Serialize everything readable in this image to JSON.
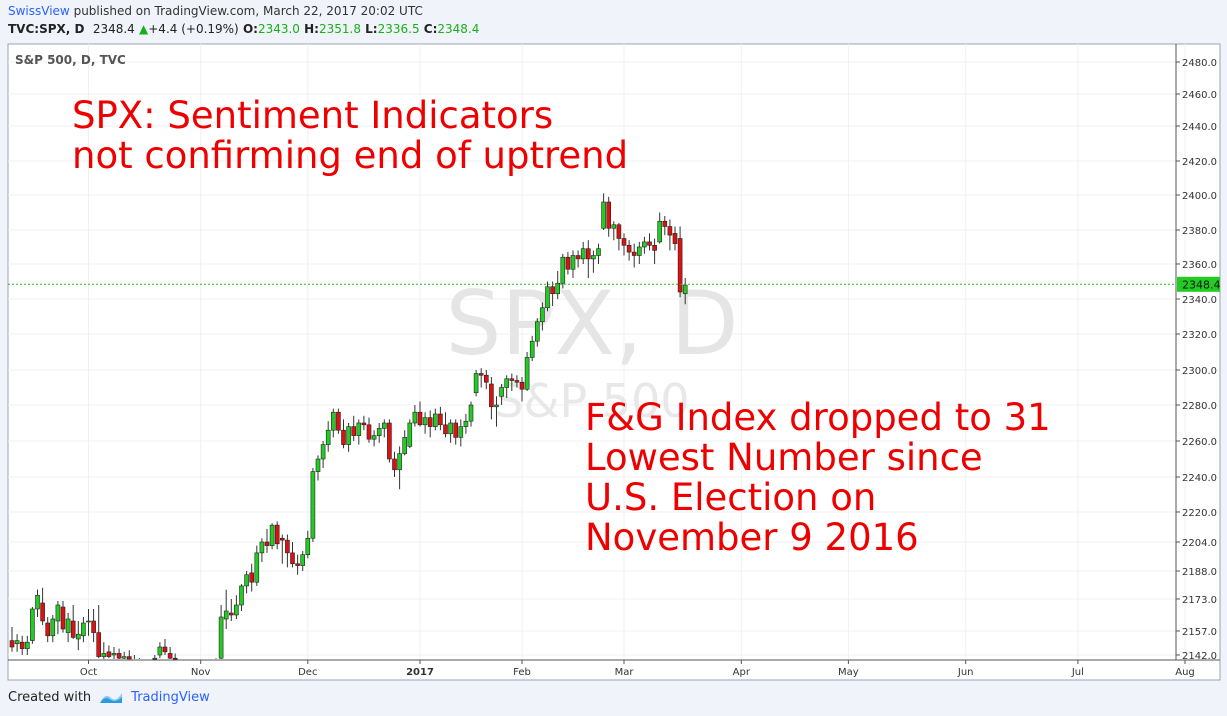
{
  "header": {
    "author": "SwissView",
    "published_text": "published on TradingView.com, March 22, 2017 20:02 UTC",
    "symbol": "TVC:SPX, D",
    "last": "2348.4",
    "change_arrow": "▲",
    "change": "+4.4 (+0.19%)",
    "o_label": "O:",
    "o": "2343.0",
    "h_label": "H:",
    "h": "2351.8",
    "l_label": "L:",
    "l": "2336.5",
    "c_label": "C:",
    "c": "2348.4"
  },
  "chart_data": {
    "type": "candlestick",
    "title": "S&P 500, D, TVC",
    "watermark_main": "SPX, D",
    "watermark_sub": "S&P 500",
    "annotation_1": [
      "SPX: Sentiment Indicators",
      "not confirming end of uptrend"
    ],
    "annotation_2": [
      "F&G Index dropped to 31",
      "Lowest Number since",
      "U.S. Election on",
      "November 9 2016"
    ],
    "last_price_label": "2348.4",
    "last_price": 2348.4,
    "y_ticks": [
      2142.0,
      2157.0,
      2173.0,
      2188.0,
      2204.0,
      2220.0,
      2240.0,
      2260.0,
      2280.0,
      2300.0,
      2320.0,
      2340.0,
      2360.0,
      2380.0,
      2400.0,
      2420.0,
      2440.0,
      2460.0,
      2480.0
    ],
    "y_tick_labels": [
      "2142.0",
      "2157.0",
      "2173.0",
      "2188.0",
      "2204.0",
      "2220.0",
      "2240.0",
      "2260.0",
      "2280.0",
      "2300.0",
      "2320.0",
      "2340.0",
      "2360.0",
      "2380.0",
      "2400.0",
      "2420.0",
      "2440.0",
      "2460.0",
      "2480.0"
    ],
    "x_ticks": [
      "Oct",
      "Nov",
      "Dec",
      "2017",
      "Feb",
      "Mar",
      "Apr",
      "May",
      "Jun",
      "Jul",
      "Aug"
    ],
    "x_tick_index": [
      15,
      37,
      58,
      80,
      100,
      120,
      143,
      164,
      187,
      209,
      230
    ],
    "up_color": "#22cc22",
    "down_color": "#dd1111",
    "grid": true,
    "y_scale": "log",
    "candles": [
      [
        2151,
        2159,
        2144,
        2147
      ],
      [
        2149,
        2155,
        2144,
        2151
      ],
      [
        2150,
        2154,
        2142,
        2146
      ],
      [
        2146,
        2154,
        2142,
        2150
      ],
      [
        2151,
        2169,
        2149,
        2168
      ],
      [
        2168,
        2178,
        2164,
        2175
      ],
      [
        2171,
        2179,
        2160,
        2162
      ],
      [
        2161,
        2164,
        2150,
        2154
      ],
      [
        2154,
        2165,
        2150,
        2163
      ],
      [
        2162,
        2172,
        2155,
        2170
      ],
      [
        2169,
        2172,
        2156,
        2158
      ],
      [
        2156,
        2166,
        2150,
        2163
      ],
      [
        2162,
        2170,
        2152,
        2153
      ],
      [
        2152,
        2162,
        2145,
        2155
      ],
      [
        2154,
        2164,
        2150,
        2161
      ],
      [
        2162,
        2168,
        2154,
        2162
      ],
      [
        2162,
        2168,
        2150,
        2156
      ],
      [
        2156,
        2170,
        2140,
        2141
      ],
      [
        2141,
        2150,
        2139,
        2143
      ],
      [
        2144,
        2148,
        2140,
        2141
      ],
      [
        2142,
        2147,
        2139,
        2143
      ],
      [
        2143,
        2146,
        2139,
        2140
      ],
      [
        2140,
        2144,
        2138,
        2141
      ],
      [
        2141,
        2145,
        2138,
        2139
      ],
      [
        2139,
        2142,
        2136,
        2137
      ],
      [
        2137,
        2140,
        2133,
        2135
      ],
      [
        2135,
        2139,
        2131,
        2134
      ],
      [
        2134,
        2138,
        2130,
        2132
      ],
      [
        2138,
        2142,
        2135,
        2140
      ],
      [
        2142,
        2150,
        2140,
        2147
      ],
      [
        2147,
        2152,
        2142,
        2144
      ],
      [
        2143,
        2147,
        2138,
        2140
      ],
      [
        2140,
        2143,
        2134,
        2136
      ],
      [
        2136,
        2139,
        2130,
        2133
      ],
      [
        2133,
        2137,
        2128,
        2131
      ],
      [
        2131,
        2134,
        2125,
        2128
      ],
      [
        2128,
        2132,
        2122,
        2126
      ],
      [
        2126,
        2130,
        2120,
        2124
      ],
      [
        2124,
        2128,
        2120,
        2123
      ],
      [
        2126,
        2134,
        2124,
        2132
      ],
      [
        2133,
        2140,
        2131,
        2139
      ],
      [
        2140,
        2170,
        2138,
        2164
      ],
      [
        2163,
        2178,
        2158,
        2167
      ],
      [
        2166,
        2173,
        2162,
        2165
      ],
      [
        2165,
        2175,
        2163,
        2170
      ],
      [
        2170,
        2181,
        2167,
        2180
      ],
      [
        2180,
        2188,
        2176,
        2186
      ],
      [
        2187,
        2192,
        2177,
        2182
      ],
      [
        2182,
        2202,
        2180,
        2198
      ],
      [
        2198,
        2206,
        2193,
        2204
      ],
      [
        2204,
        2211,
        2198,
        2202
      ],
      [
        2202,
        2214,
        2200,
        2213
      ],
      [
        2213,
        2215,
        2200,
        2203
      ],
      [
        2206,
        2208,
        2192,
        2205
      ],
      [
        2205,
        2208,
        2190,
        2198
      ],
      [
        2198,
        2204,
        2190,
        2192
      ],
      [
        2192,
        2197,
        2186,
        2191
      ],
      [
        2191,
        2199,
        2188,
        2197
      ],
      [
        2197,
        2210,
        2195,
        2206
      ],
      [
        2206,
        2245,
        2204,
        2243
      ],
      [
        2243,
        2252,
        2238,
        2250
      ],
      [
        2250,
        2260,
        2245,
        2258
      ],
      [
        2258,
        2271,
        2254,
        2266
      ],
      [
        2266,
        2278,
        2262,
        2276
      ],
      [
        2276,
        2278,
        2264,
        2266
      ],
      [
        2266,
        2272,
        2256,
        2258
      ],
      [
        2258,
        2270,
        2254,
        2268
      ],
      [
        2268,
        2274,
        2260,
        2263
      ],
      [
        2263,
        2272,
        2258,
        2270
      ],
      [
        2270,
        2274,
        2266,
        2269
      ],
      [
        2269,
        2273,
        2259,
        2261
      ],
      [
        2261,
        2266,
        2257,
        2263
      ],
      [
        2263,
        2270,
        2259,
        2267
      ],
      [
        2267,
        2272,
        2262,
        2270
      ],
      [
        2270,
        2272,
        2248,
        2250
      ],
      [
        2250,
        2254,
        2240,
        2244
      ],
      [
        2244,
        2257,
        2233,
        2253
      ],
      [
        2253,
        2266,
        2252,
        2262
      ],
      [
        2257,
        2272,
        2256,
        2270
      ],
      [
        2270,
        2280,
        2268,
        2276
      ],
      [
        2276,
        2282,
        2268,
        2269
      ],
      [
        2269,
        2276,
        2264,
        2273
      ],
      [
        2273,
        2277,
        2262,
        2268
      ],
      [
        2268,
        2278,
        2266,
        2275
      ],
      [
        2275,
        2279,
        2266,
        2269
      ],
      [
        2269,
        2276,
        2262,
        2264
      ],
      [
        2264,
        2272,
        2259,
        2270
      ],
      [
        2270,
        2272,
        2258,
        2262
      ],
      [
        2262,
        2272,
        2257,
        2268
      ],
      [
        2268,
        2275,
        2264,
        2271
      ],
      [
        2271,
        2282,
        2268,
        2280
      ],
      [
        2287,
        2300,
        2285,
        2298
      ],
      [
        2298,
        2301,
        2290,
        2297
      ],
      [
        2297,
        2300,
        2289,
        2293
      ],
      [
        2292,
        2296,
        2272,
        2279
      ],
      [
        2279,
        2285,
        2268,
        2280
      ],
      [
        2285,
        2292,
        2280,
        2290
      ],
      [
        2290,
        2297,
        2284,
        2295
      ],
      [
        2295,
        2298,
        2288,
        2294
      ],
      [
        2294,
        2297,
        2290,
        2293
      ],
      [
        2293,
        2296,
        2282,
        2289
      ],
      [
        2289,
        2310,
        2288,
        2307
      ],
      [
        2307,
        2319,
        2305,
        2316
      ],
      [
        2316,
        2329,
        2313,
        2327
      ],
      [
        2327,
        2338,
        2322,
        2335
      ],
      [
        2335,
        2350,
        2333,
        2347
      ],
      [
        2347,
        2350,
        2336,
        2343
      ],
      [
        2343,
        2356,
        2340,
        2349
      ],
      [
        2349,
        2366,
        2346,
        2364
      ],
      [
        2364,
        2367,
        2354,
        2357
      ],
      [
        2357,
        2368,
        2352,
        2365
      ],
      [
        2365,
        2368,
        2358,
        2363
      ],
      [
        2363,
        2373,
        2360,
        2369
      ],
      [
        2369,
        2374,
        2352,
        2363
      ],
      [
        2363,
        2368,
        2355,
        2365
      ],
      [
        2365,
        2372,
        2360,
        2369
      ],
      [
        2381,
        2401,
        2380,
        2396
      ],
      [
        2396,
        2399,
        2376,
        2381
      ],
      [
        2381,
        2385,
        2374,
        2383
      ],
      [
        2383,
        2384,
        2368,
        2375
      ],
      [
        2375,
        2378,
        2365,
        2371
      ],
      [
        2371,
        2374,
        2362,
        2367
      ],
      [
        2367,
        2372,
        2358,
        2365
      ],
      [
        2365,
        2373,
        2360,
        2370
      ],
      [
        2370,
        2376,
        2366,
        2373
      ],
      [
        2373,
        2378,
        2368,
        2371
      ],
      [
        2371,
        2375,
        2360,
        2368
      ],
      [
        2373,
        2390,
        2372,
        2385
      ],
      [
        2385,
        2388,
        2377,
        2382
      ],
      [
        2382,
        2386,
        2368,
        2377
      ],
      [
        2378,
        2382,
        2368,
        2372
      ],
      [
        2375,
        2382,
        2341,
        2344
      ],
      [
        2343,
        2352,
        2337,
        2348
      ]
    ]
  },
  "footer": {
    "created_with": "Created with",
    "brand": "TradingView"
  }
}
